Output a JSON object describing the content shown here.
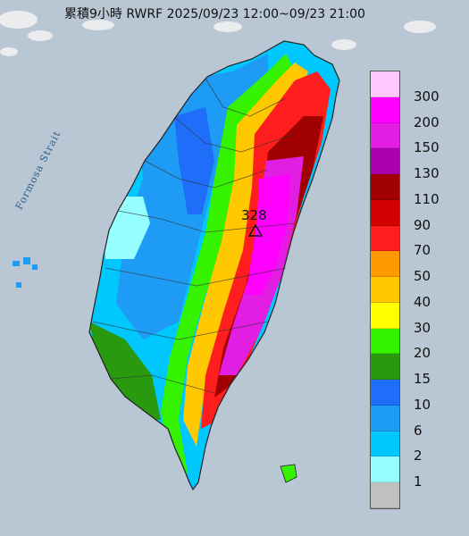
{
  "title": "累積9小時 RWRF 2025/09/23 12:00~09/23 21:00",
  "strait_label": "Formosa Strait",
  "max_value": "328",
  "legend": {
    "labels": [
      "300",
      "200",
      "150",
      "130",
      "110",
      "90",
      "70",
      "50",
      "40",
      "30",
      "20",
      "15",
      "10",
      "6",
      "2",
      "1"
    ],
    "colors": [
      "#ffc8ff",
      "#ff00ff",
      "#e31ee3",
      "#ad00ad",
      "#a00000",
      "#d20000",
      "#ff1e1e",
      "#ff9900",
      "#ffc800",
      "#ffff00",
      "#34f200",
      "#299a0f",
      "#1e6efa",
      "#1e9bf5",
      "#00c8ff",
      "#96ffff",
      "#c0c0c0"
    ]
  },
  "map_colors": {
    "sea": "#b9c6d3",
    "cloud": "#f5f5f5"
  }
}
